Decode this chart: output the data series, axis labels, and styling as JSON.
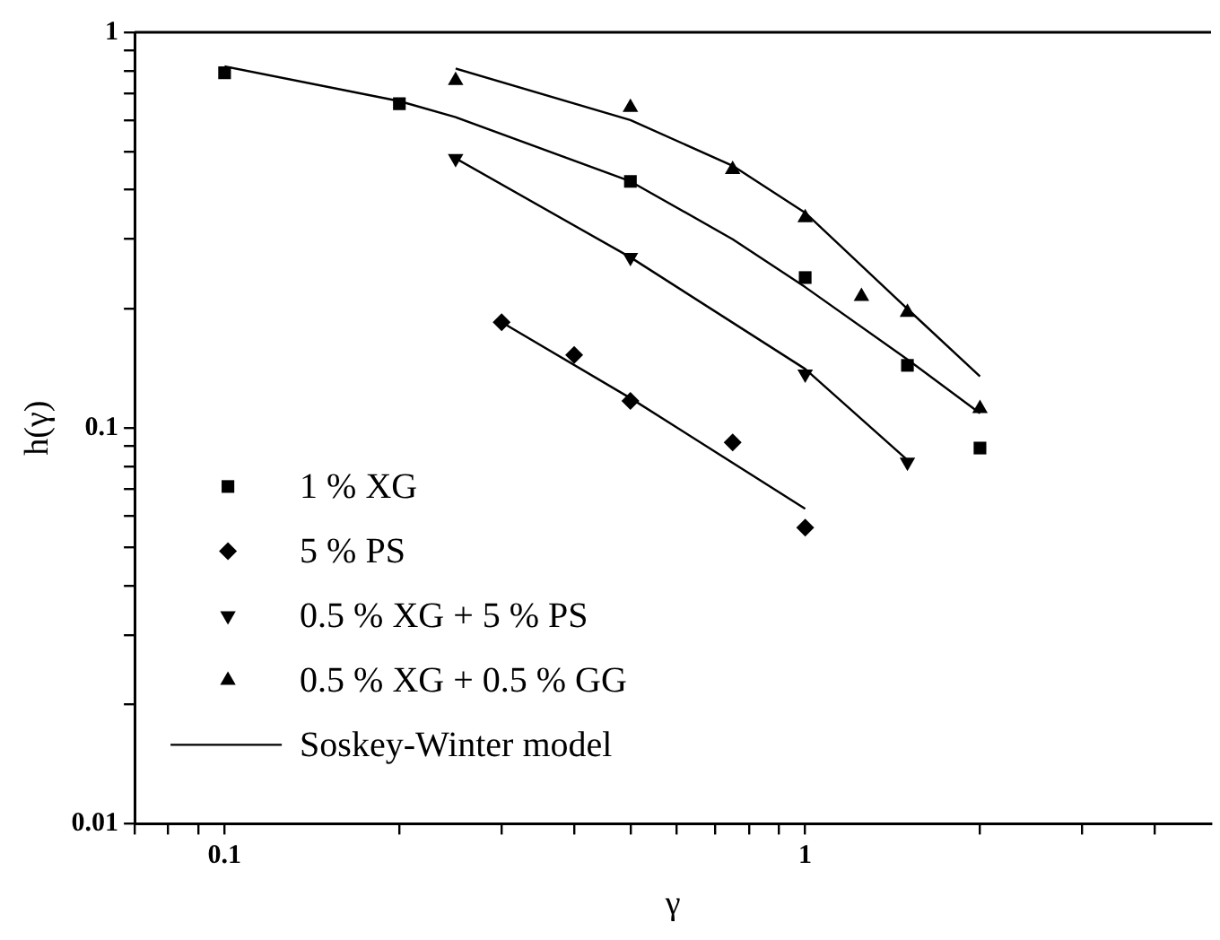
{
  "chart_data": {
    "type": "scatter",
    "xlabel": "γ",
    "ylabel": "h(γ)",
    "log": "xy",
    "legend": "bottom left",
    "grid": false,
    "xlim": [
      0.07,
      5
    ],
    "ylim": [
      0.01,
      1
    ],
    "xticks": [
      {
        "value": 0.07,
        "label": null
      },
      {
        "value": 0.08,
        "label": null
      },
      {
        "value": 0.09,
        "label": null
      },
      0.1,
      {
        "value": 0.2,
        "label": null
      },
      {
        "value": 0.3,
        "label": null
      },
      {
        "value": 0.4,
        "label": null
      },
      {
        "value": 0.5,
        "label": null
      },
      {
        "value": 0.6,
        "label": null
      },
      {
        "value": 0.7,
        "label": null
      },
      {
        "value": 0.8,
        "label": null
      },
      {
        "value": 0.9,
        "label": null
      },
      1,
      {
        "value": 2,
        "label": null
      },
      {
        "value": 3,
        "label": null
      },
      {
        "value": 4,
        "label": null
      }
    ],
    "yticks": [
      0.01,
      {
        "value": 0.02,
        "label": null
      },
      {
        "value": 0.03,
        "label": null
      },
      {
        "value": 0.04,
        "label": null
      },
      {
        "value": 0.05,
        "label": null
      },
      {
        "value": 0.06,
        "label": null
      },
      {
        "value": 0.07,
        "label": null
      },
      {
        "value": 0.08,
        "label": null
      },
      {
        "value": 0.09,
        "label": null
      },
      0.1,
      {
        "value": 0.2,
        "label": null
      },
      {
        "value": 0.3,
        "label": null
      },
      {
        "value": 0.4,
        "label": null
      },
      {
        "value": 0.5,
        "label": null
      },
      {
        "value": 0.6,
        "label": null
      },
      {
        "value": 0.7,
        "label": null
      },
      {
        "value": 0.8,
        "label": null
      },
      {
        "value": 0.9,
        "label": null
      },
      1
    ],
    "series": [
      {
        "name": "1 % XG",
        "marker": "square",
        "color": "#000000",
        "x": [
          0.1,
          0.2,
          0.5,
          1,
          1.5,
          2
        ],
        "values": [
          0.79,
          0.66,
          0.42,
          0.24,
          0.144,
          0.089
        ]
      },
      {
        "name": "5 % PS",
        "marker": "diamond",
        "color": "#000000",
        "x": [
          0.3,
          0.4,
          0.5,
          0.75,
          1
        ],
        "values": [
          0.185,
          0.153,
          0.117,
          0.092,
          0.056
        ]
      },
      {
        "name": "0.5 % XG + 5 % PS",
        "marker": "triangle-down",
        "color": "#000000",
        "x": [
          0.25,
          0.5,
          1,
          1.5
        ],
        "values": [
          0.48,
          0.27,
          0.137,
          0.082
        ]
      },
      {
        "name": "0.5 % XG + 0.5 % GG",
        "marker": "triangle",
        "color": "#000000",
        "x": [
          0.25,
          0.5,
          0.75,
          1,
          1.25,
          1.5,
          2
        ],
        "values": [
          0.755,
          0.646,
          0.45,
          0.34,
          0.215,
          0.196,
          0.112
        ]
      },
      {
        "name": "Soskey-Winter model",
        "type": "line",
        "marker": "none",
        "color": "#000000",
        "x": [
          0.1,
          0.2,
          0.25,
          0.5,
          0.75,
          1,
          1.5,
          2
        ],
        "values": [
          0.82,
          0.67,
          0.61,
          0.42,
          0.3,
          0.227,
          0.149,
          0.109
        ]
      },
      {
        "type": "line",
        "marker": "none",
        "color": "#000000",
        "x": [
          0.3,
          0.5,
          1
        ],
        "values": [
          0.185,
          0.119,
          0.0625
        ]
      },
      {
        "type": "line",
        "marker": "none",
        "color": "#000000",
        "x": [
          0.25,
          0.5,
          1,
          1.5
        ],
        "values": [
          0.48,
          0.27,
          0.141,
          0.083
        ]
      },
      {
        "type": "line",
        "marker": "none",
        "color": "#000000",
        "x": [
          0.25,
          0.5,
          0.75,
          1,
          1.5,
          2
        ],
        "values": [
          0.81,
          0.6,
          0.46,
          0.35,
          0.2,
          0.135
        ]
      }
    ]
  }
}
